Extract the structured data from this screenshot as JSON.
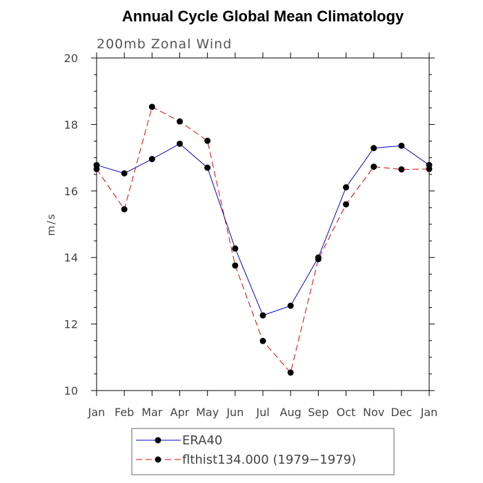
{
  "chart_data": {
    "type": "line",
    "title": "Annual Cycle Global Mean Climatology",
    "subtitle": "200mb Zonal Wind",
    "ylabel": "m/s",
    "xlabel": "",
    "categories": [
      "Jan",
      "Feb",
      "Mar",
      "Apr",
      "May",
      "Jun",
      "Jul",
      "Aug",
      "Sep",
      "Oct",
      "Nov",
      "Dec",
      "Jan"
    ],
    "ylim": [
      10,
      20
    ],
    "yticks": [
      10,
      12,
      14,
      16,
      18,
      20
    ],
    "series": [
      {
        "name": "ERA40",
        "color": "#0000cc",
        "style": "solid",
        "values": [
          16.78,
          16.53,
          16.96,
          17.42,
          16.7,
          14.27,
          12.26,
          12.55,
          14.0,
          16.11,
          17.29,
          17.36,
          16.78
        ]
      },
      {
        "name": "flthist134.000 (1979−1979)",
        "color": "#dd0000",
        "style": "dashed",
        "values": [
          16.66,
          15.45,
          18.53,
          18.09,
          17.51,
          13.76,
          11.49,
          10.54,
          13.95,
          15.6,
          16.73,
          16.65,
          16.66
        ]
      }
    ],
    "legend_position": "bottom"
  }
}
